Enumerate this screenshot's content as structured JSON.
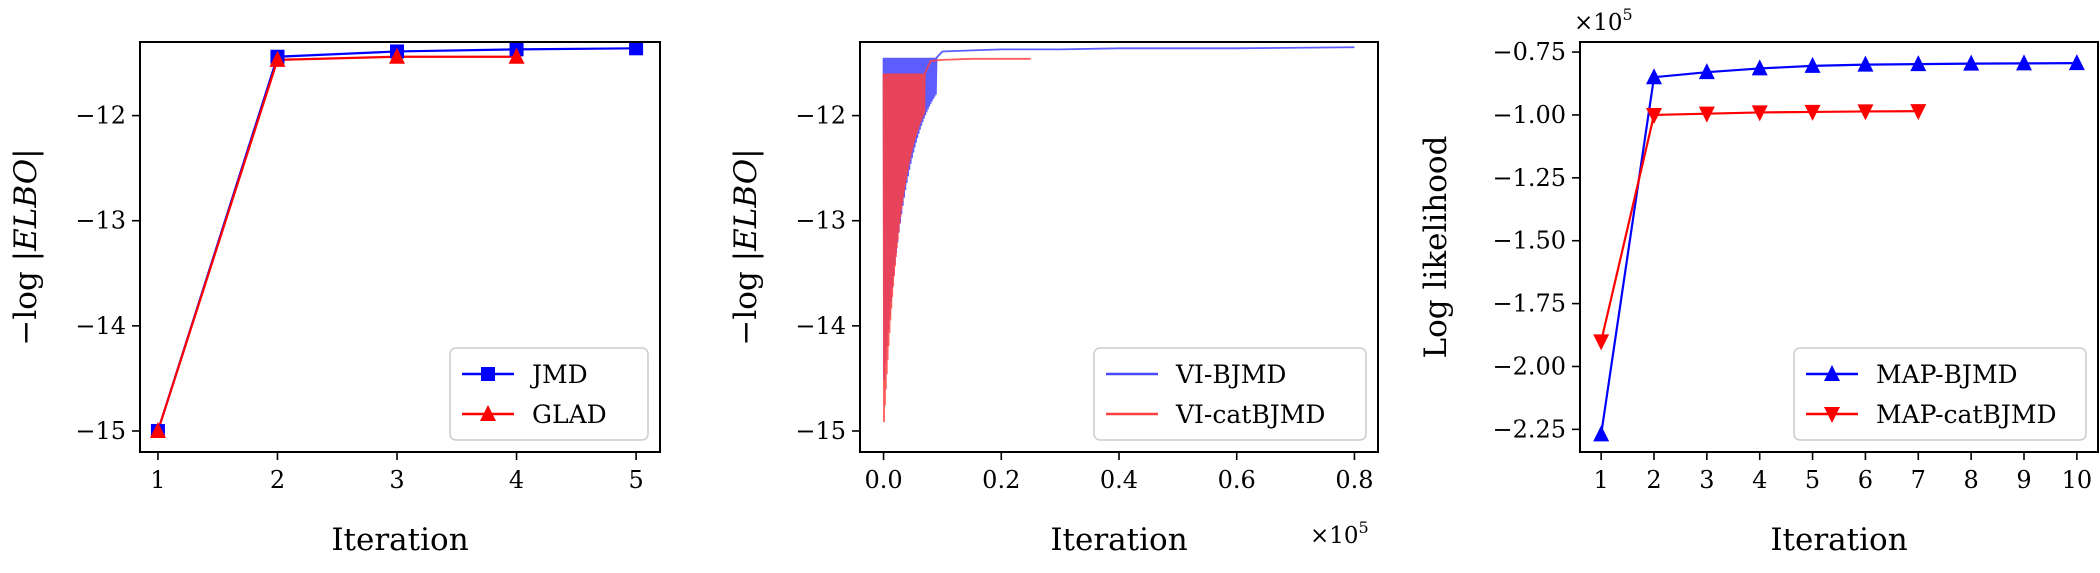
{
  "chart_data": [
    {
      "type": "line",
      "xlabel": "Iteration",
      "ylabel": "−log |ELBO|",
      "xlim": [
        0.85,
        5.2
      ],
      "ylim": [
        -15.2,
        -11.3
      ],
      "xticks": [
        1,
        2,
        3,
        4,
        5
      ],
      "yticks": [
        -15,
        -14,
        -13,
        -12
      ],
      "ytick_labels": [
        "−15",
        "−14",
        "−13",
        "−12"
      ],
      "legend_position": "lower right",
      "series": [
        {
          "name": "JMD",
          "color": "#0000ff",
          "marker": "square",
          "x": [
            1,
            2,
            3,
            4,
            5
          ],
          "y": [
            -15.0,
            -11.44,
            -11.39,
            -11.37,
            -11.36
          ]
        },
        {
          "name": "GLAD",
          "color": "#ff0000",
          "marker": "triangle-up",
          "x": [
            1,
            2,
            3,
            4
          ],
          "y": [
            -15.0,
            -11.47,
            -11.44,
            -11.44
          ]
        }
      ]
    },
    {
      "type": "line",
      "xlabel": "Iteration",
      "ylabel": "−log |ELBO|",
      "x_multiplier": "×10",
      "x_multiplier_exp": "5",
      "xlim": [
        -0.04,
        0.84
      ],
      "ylim": [
        -15.2,
        -11.3
      ],
      "xticks": [
        0.0,
        0.2,
        0.4,
        0.6,
        0.8
      ],
      "xtick_labels": [
        "0.0",
        "0.2",
        "0.4",
        "0.6",
        "0.8"
      ],
      "yticks": [
        -15,
        -14,
        -13,
        -12
      ],
      "ytick_labels": [
        "−15",
        "−14",
        "−13",
        "−12"
      ],
      "legend_position": "lower right",
      "series": [
        {
          "name": "VI-BJMD",
          "color": "#4a4aff",
          "x": [
            0.0,
            0.005,
            0.01,
            0.02,
            0.04,
            0.06,
            0.08,
            0.1,
            0.15,
            0.2,
            0.3,
            0.4,
            0.6,
            0.8
          ],
          "y": [
            -14.7,
            -11.45,
            -11.42,
            -11.42,
            -11.41,
            -11.41,
            -11.4,
            -11.39,
            -11.38,
            -11.37,
            -11.37,
            -11.36,
            -11.36,
            -11.35
          ]
        },
        {
          "name": "VI-catBJMD",
          "color": "#ff4040",
          "x": [
            0.0,
            0.005,
            0.01,
            0.02,
            0.04,
            0.06,
            0.08,
            0.1,
            0.15,
            0.2,
            0.25
          ],
          "y": [
            -15.0,
            -11.6,
            -11.5,
            -11.5,
            -11.5,
            -11.5,
            -11.48,
            -11.47,
            -11.46,
            -11.46,
            -11.46
          ]
        }
      ]
    },
    {
      "type": "line",
      "xlabel": "Iteration",
      "ylabel": "Log likelihood",
      "y_multiplier": "×10",
      "y_multiplier_exp": "5",
      "xlim": [
        0.6,
        10.4
      ],
      "ylim": [
        -2.34,
        -0.71
      ],
      "xticks": [
        1,
        2,
        3,
        4,
        5,
        6,
        7,
        8,
        9,
        10
      ],
      "yticks": [
        -2.25,
        -2.0,
        -1.75,
        -1.5,
        -1.25,
        -1.0,
        -0.75
      ],
      "ytick_labels": [
        "−2.25",
        "−2.00",
        "−1.75",
        "−1.50",
        "−1.25",
        "−1.00",
        "−0.75"
      ],
      "legend_position": "lower right",
      "series": [
        {
          "name": "MAP-BJMD",
          "color": "#0000ff",
          "marker": "triangle-up",
          "x": [
            1,
            2,
            3,
            4,
            5,
            6,
            7,
            8,
            9,
            10
          ],
          "y": [
            -2.27,
            -0.85,
            -0.83,
            -0.815,
            -0.805,
            -0.8,
            -0.798,
            -0.796,
            -0.795,
            -0.794
          ]
        },
        {
          "name": "MAP-catBJMD",
          "color": "#ff0000",
          "marker": "triangle-down",
          "x": [
            1,
            2,
            3,
            4,
            5,
            6,
            7
          ],
          "y": [
            -1.9,
            -1.0,
            -0.995,
            -0.99,
            -0.988,
            -0.986,
            -0.985
          ]
        }
      ]
    }
  ]
}
